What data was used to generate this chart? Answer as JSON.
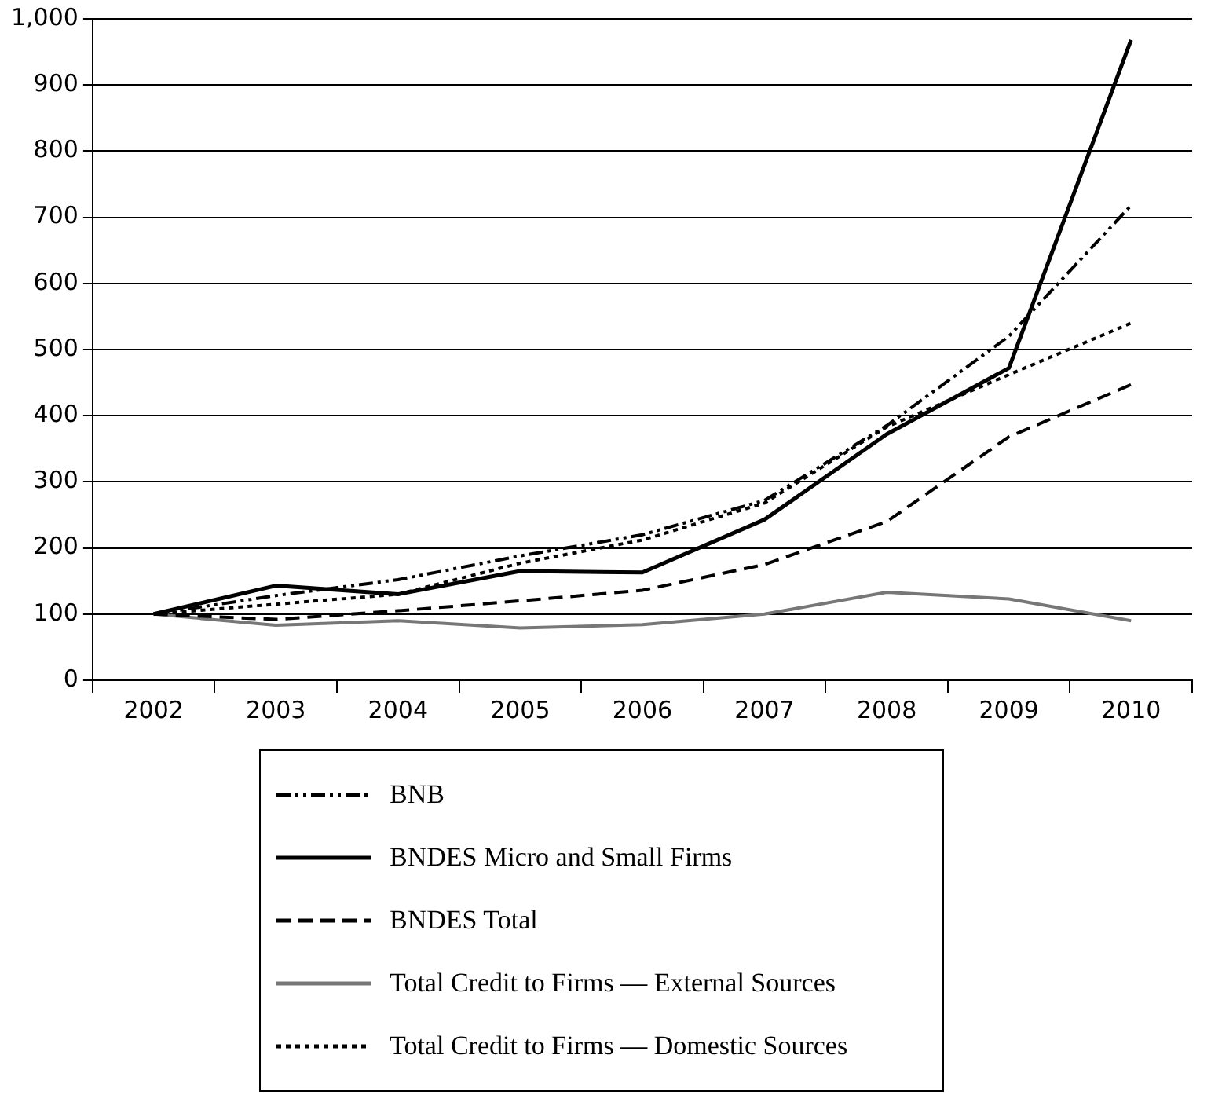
{
  "chart_data": {
    "type": "line",
    "categories": [
      "2002",
      "2003",
      "2004",
      "2005",
      "2006",
      "2007",
      "2008",
      "2009",
      "2010"
    ],
    "series": [
      {
        "name": "BNB",
        "color": "#000000",
        "line_style": "dashdotdot",
        "values": [
          100,
          128,
          152,
          188,
          220,
          272,
          385,
          520,
          718
        ]
      },
      {
        "name": "BNDES Micro and Small Firms",
        "color": "#000000",
        "line_style": "solid",
        "values": [
          100,
          143,
          130,
          165,
          163,
          243,
          372,
          472,
          968
        ]
      },
      {
        "name": "BNDES Total",
        "color": "#000000",
        "line_style": "dashed",
        "values": [
          100,
          92,
          105,
          120,
          136,
          175,
          240,
          368,
          447
        ]
      },
      {
        "name": "Total Credit to Firms — External Sources",
        "color": "#777777",
        "line_style": "solid",
        "values": [
          100,
          83,
          90,
          79,
          84,
          100,
          133,
          123,
          90
        ]
      },
      {
        "name": "Total Credit to Firms — Domestic Sources",
        "color": "#000000",
        "line_style": "dotted",
        "values": [
          100,
          115,
          130,
          177,
          212,
          268,
          383,
          462,
          540
        ]
      }
    ],
    "ylim": [
      0,
      1000
    ],
    "yticks": [
      0,
      100,
      200,
      300,
      400,
      500,
      600,
      700,
      800,
      900,
      {
        "value": 1000,
        "label": "1,000"
      }
    ],
    "grid": "y",
    "legend": "bottom",
    "marker": "none"
  }
}
